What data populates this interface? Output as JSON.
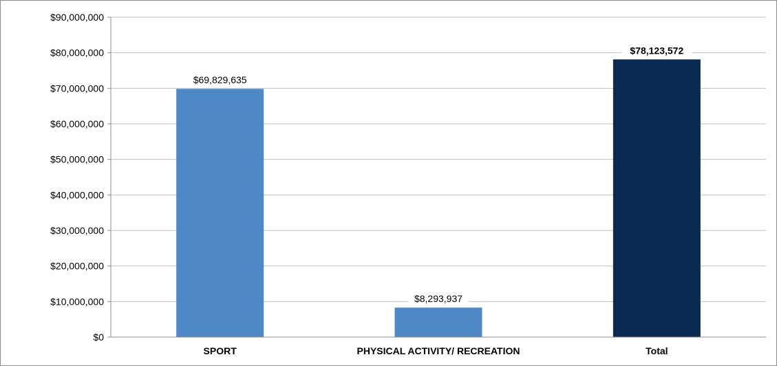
{
  "chart_data": {
    "type": "bar",
    "title": "",
    "xlabel": "",
    "ylabel": "",
    "ylim": [
      0,
      90000000
    ],
    "ytick_step": 10000000,
    "yticks": [
      "$0",
      "$10,000,000",
      "$20,000,000",
      "$30,000,000",
      "$40,000,000",
      "$50,000,000",
      "$60,000,000",
      "$70,000,000",
      "$80,000,000",
      "$90,000,000"
    ],
    "grid": true,
    "legend": "none",
    "categories": [
      "SPORT",
      "PHYSICAL ACTIVITY/ RECREATION",
      "Total"
    ],
    "values": [
      69829635,
      8293937,
      78123572
    ],
    "data_labels": [
      "$69,829,635",
      "$8,293,937",
      "$78,123,572"
    ],
    "bar_colors": [
      "#4f88c6",
      "#4f88c6",
      "#0b2a52"
    ],
    "bold_labels": [
      false,
      false,
      true
    ]
  },
  "colors": {
    "grid": "#bfbfbf",
    "axis": "#8c8c8c",
    "frame_border": "#8c8c8c"
  }
}
